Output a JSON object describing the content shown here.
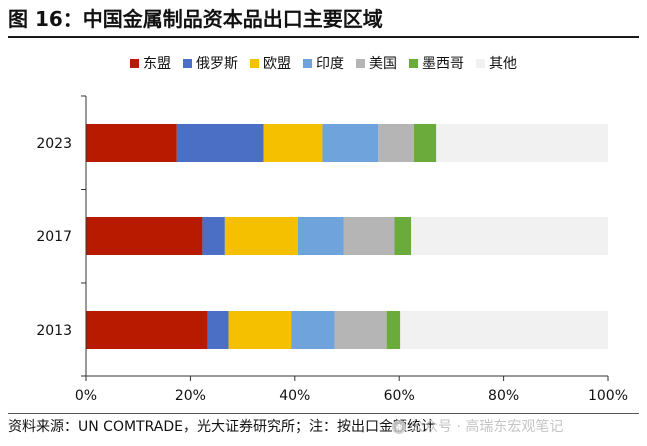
{
  "figure": {
    "title": "图 16：中国金属制品资本品出口主要区域",
    "source_note": "资料来源：UN COMTRADE，光大证券研究所；注：按出口金额统计",
    "watermark": "公众号 · 高瑞东宏观笔记"
  },
  "chart_data": {
    "type": "bar",
    "orientation": "horizontal",
    "stacked": true,
    "categories": [
      "2023",
      "2017",
      "2013"
    ],
    "series": [
      {
        "name": "东盟",
        "color": "#b81a00",
        "values": [
          17.4,
          22.3,
          23.3
        ]
      },
      {
        "name": "俄罗斯",
        "color": "#4a6fc4",
        "values": [
          16.6,
          4.3,
          4.0
        ]
      },
      {
        "name": "欧盟",
        "color": "#f5c000",
        "values": [
          11.3,
          14.0,
          12.0
        ]
      },
      {
        "name": "印度",
        "color": "#6fa3dc",
        "values": [
          10.7,
          8.8,
          8.3
        ]
      },
      {
        "name": "美国",
        "color": "#b5b5b5",
        "values": [
          6.8,
          9.7,
          10.0
        ]
      },
      {
        "name": "墨西哥",
        "color": "#6aab3c",
        "values": [
          4.3,
          3.2,
          2.6
        ]
      },
      {
        "name": "其他",
        "color": "#f1f1f1",
        "values": [
          32.9,
          37.7,
          39.8
        ]
      }
    ],
    "xlim": [
      0,
      100
    ],
    "xticks": [
      "0%",
      "20%",
      "40%",
      "60%",
      "80%",
      "100%"
    ],
    "legend_position": "top-center",
    "grid": false
  }
}
